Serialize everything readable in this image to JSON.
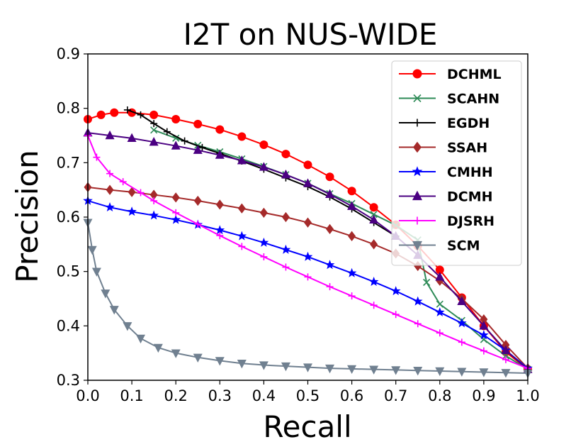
{
  "chart_data": {
    "type": "line",
    "title": "I2T on NUS-WIDE",
    "xlabel": "Recall",
    "ylabel": "Precision",
    "xlim": [
      0.0,
      1.0
    ],
    "ylim": [
      0.3,
      0.9
    ],
    "xticks": [
      "0.0",
      "0.1",
      "0.2",
      "0.3",
      "0.4",
      "0.5",
      "0.6",
      "0.7",
      "0.8",
      "0.9",
      "1.0"
    ],
    "yticks": [
      "0.3",
      "0.4",
      "0.5",
      "0.6",
      "0.7",
      "0.8",
      "0.9"
    ],
    "grid": false,
    "legend_position": "top-right",
    "series": [
      {
        "name": "DCHML",
        "color": "#ff0000",
        "marker": "circle",
        "x": [
          0.0,
          0.03,
          0.06,
          0.1,
          0.15,
          0.2,
          0.25,
          0.3,
          0.35,
          0.4,
          0.45,
          0.5,
          0.55,
          0.6,
          0.65,
          0.7,
          0.75,
          0.8,
          0.85,
          0.9,
          0.95,
          1.0
        ],
        "y": [
          0.78,
          0.788,
          0.792,
          0.792,
          0.788,
          0.78,
          0.771,
          0.761,
          0.748,
          0.733,
          0.716,
          0.696,
          0.674,
          0.648,
          0.618,
          0.586,
          0.547,
          0.503,
          0.452,
          0.4,
          0.352,
          0.32
        ]
      },
      {
        "name": "SCAHN",
        "color": "#2e8b57",
        "marker": "x",
        "x": [
          0.15,
          0.2,
          0.25,
          0.3,
          0.35,
          0.4,
          0.45,
          0.5,
          0.55,
          0.6,
          0.65,
          0.7,
          0.75,
          0.77,
          0.8,
          0.85,
          0.9,
          0.95,
          1.0
        ],
        "y": [
          0.76,
          0.745,
          0.732,
          0.72,
          0.707,
          0.693,
          0.678,
          0.662,
          0.643,
          0.625,
          0.605,
          0.585,
          0.558,
          0.48,
          0.44,
          0.41,
          0.375,
          0.345,
          0.32
        ]
      },
      {
        "name": "EGDH",
        "color": "#000000",
        "marker": "plus",
        "x": [
          0.09,
          0.12,
          0.15,
          0.18,
          0.22,
          0.26,
          0.3,
          0.35,
          0.4,
          0.45,
          0.5,
          0.55,
          0.6,
          0.65,
          0.7
        ],
        "y": [
          0.797,
          0.788,
          0.772,
          0.757,
          0.74,
          0.728,
          0.717,
          0.703,
          0.688,
          0.672,
          0.656,
          0.637,
          0.615,
          0.59,
          0.565
        ]
      },
      {
        "name": "SSAH",
        "color": "#a52a2a",
        "marker": "diamond",
        "x": [
          0.0,
          0.05,
          0.1,
          0.15,
          0.2,
          0.25,
          0.3,
          0.35,
          0.4,
          0.45,
          0.5,
          0.55,
          0.6,
          0.65,
          0.7,
          0.75,
          0.8,
          0.85,
          0.9,
          0.95,
          1.0
        ],
        "y": [
          0.655,
          0.65,
          0.646,
          0.641,
          0.636,
          0.63,
          0.623,
          0.616,
          0.608,
          0.6,
          0.59,
          0.578,
          0.565,
          0.55,
          0.533,
          0.51,
          0.483,
          0.45,
          0.412,
          0.365,
          0.322
        ]
      },
      {
        "name": "CMHH",
        "color": "#0000ff",
        "marker": "star",
        "x": [
          0.0,
          0.05,
          0.1,
          0.15,
          0.2,
          0.25,
          0.3,
          0.35,
          0.4,
          0.45,
          0.5,
          0.55,
          0.6,
          0.65,
          0.7,
          0.75,
          0.8,
          0.85,
          0.9,
          0.95,
          1.0
        ],
        "y": [
          0.63,
          0.618,
          0.61,
          0.603,
          0.595,
          0.586,
          0.576,
          0.565,
          0.553,
          0.54,
          0.527,
          0.512,
          0.497,
          0.481,
          0.464,
          0.445,
          0.425,
          0.405,
          0.383,
          0.355,
          0.322
        ]
      },
      {
        "name": "DCMH",
        "color": "#4b0082",
        "marker": "triangle-up",
        "x": [
          0.0,
          0.05,
          0.1,
          0.15,
          0.2,
          0.25,
          0.3,
          0.35,
          0.4,
          0.45,
          0.5,
          0.55,
          0.6,
          0.65,
          0.7,
          0.75,
          0.8,
          0.85,
          0.9,
          0.95,
          1.0
        ],
        "y": [
          0.755,
          0.75,
          0.745,
          0.738,
          0.731,
          0.723,
          0.714,
          0.704,
          0.692,
          0.678,
          0.662,
          0.642,
          0.62,
          0.595,
          0.565,
          0.53,
          0.49,
          0.445,
          0.4,
          0.355,
          0.32
        ]
      },
      {
        "name": "DJSRH",
        "color": "#ff00ff",
        "marker": "plus",
        "x": [
          0.0,
          0.02,
          0.05,
          0.08,
          0.12,
          0.15,
          0.2,
          0.25,
          0.3,
          0.35,
          0.4,
          0.45,
          0.5,
          0.55,
          0.6,
          0.65,
          0.7,
          0.75,
          0.8,
          0.85,
          0.9,
          0.95,
          1.0
        ],
        "y": [
          0.75,
          0.71,
          0.68,
          0.665,
          0.645,
          0.63,
          0.608,
          0.587,
          0.566,
          0.546,
          0.527,
          0.508,
          0.49,
          0.472,
          0.455,
          0.438,
          0.421,
          0.404,
          0.387,
          0.37,
          0.354,
          0.338,
          0.322
        ]
      },
      {
        "name": "SCM",
        "color": "#708090",
        "marker": "triangle-down",
        "x": [
          0.0,
          0.01,
          0.02,
          0.04,
          0.06,
          0.09,
          0.12,
          0.16,
          0.2,
          0.25,
          0.3,
          0.35,
          0.4,
          0.45,
          0.5,
          0.55,
          0.6,
          0.65,
          0.7,
          0.75,
          0.8,
          0.85,
          0.9,
          0.95,
          1.0
        ],
        "y": [
          0.59,
          0.54,
          0.5,
          0.46,
          0.43,
          0.4,
          0.377,
          0.36,
          0.35,
          0.342,
          0.336,
          0.331,
          0.328,
          0.326,
          0.324,
          0.322,
          0.321,
          0.32,
          0.319,
          0.318,
          0.317,
          0.316,
          0.315,
          0.314,
          0.313
        ]
      }
    ]
  }
}
